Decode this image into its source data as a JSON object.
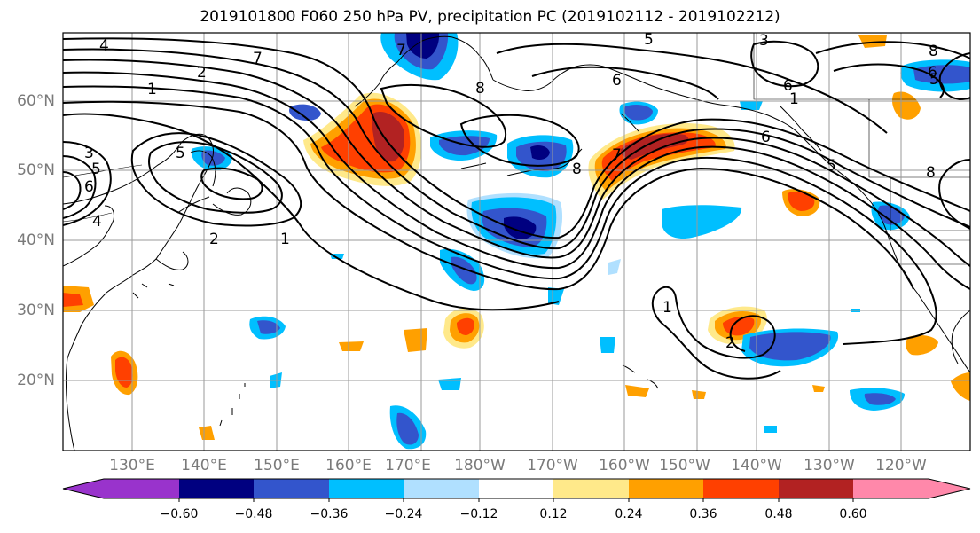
{
  "title": "2019101800 F060 250 hPa PV, precipitation PC (2019102112 - 2019102212)",
  "lat_labels": [
    "60°N",
    "50°N",
    "40°N",
    "30°N",
    "20°N"
  ],
  "lon_labels": [
    "130°E",
    "140°E",
    "150°E",
    "160°E",
    "170°E",
    "180°W",
    "170°W",
    "160°W",
    "150°W",
    "140°W",
    "130°W",
    "120°W"
  ],
  "colorbar": {
    "ticks": [
      "−0.60",
      "−0.48",
      "−0.36",
      "−0.24",
      "−0.12",
      "0.12",
      "0.24",
      "0.36",
      "0.48",
      "0.60"
    ],
    "colors": [
      "#9933cc",
      "#000080",
      "#3355cc",
      "#00bfff",
      "#b0e0ff",
      "#ffffff",
      "#ffe98a",
      "#ffa000",
      "#ff4000",
      "#b22222",
      "#ff88aa"
    ]
  },
  "pv_contour_labels": [
    "4",
    "7",
    "2",
    "1",
    "3",
    "5",
    "6",
    "4",
    "5",
    "1",
    "2",
    "7",
    "8",
    "8",
    "5",
    "6",
    "6",
    "7",
    "6",
    "5",
    "8",
    "8",
    "5",
    "1",
    "3",
    "6",
    "1",
    "2"
  ],
  "precip_palette": {
    "neg_light": "#b0e0ff",
    "neg_mid": "#00bfff",
    "neg_strong": "#3355cc",
    "neg_max": "#000080",
    "pos_light": "#ffe98a",
    "pos_mid": "#ffa000",
    "pos_strong": "#ff4000",
    "pos_max": "#b22222"
  }
}
